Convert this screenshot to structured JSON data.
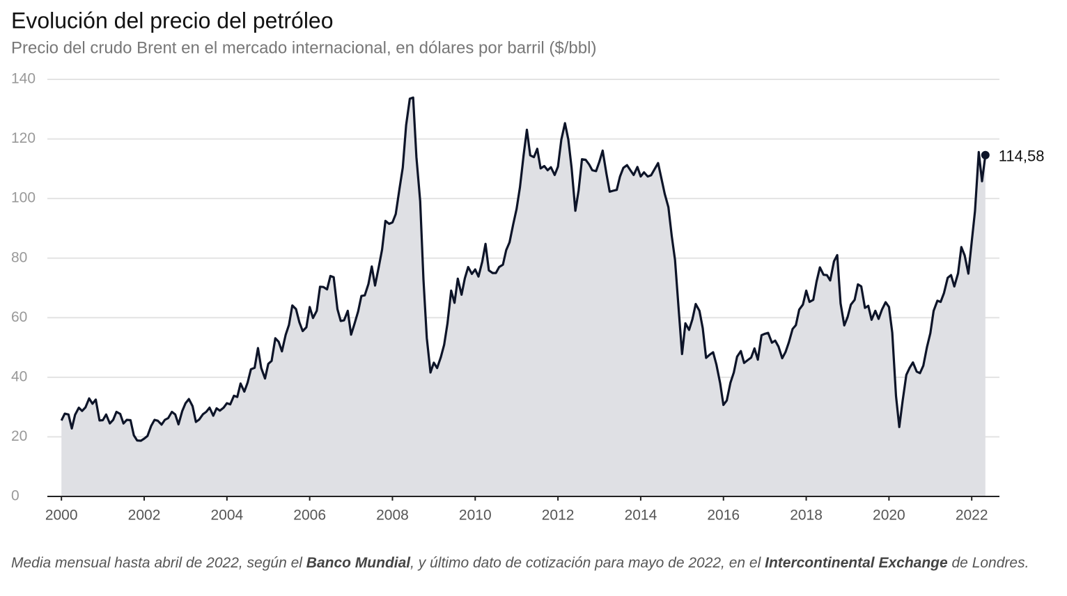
{
  "chart_data": {
    "type": "area",
    "title": "Evolución del precio del petróleo",
    "subtitle": "Precio del crudo Brent en el mercado internacional, en dólares por barril ($/bbl)",
    "note": [
      "Media mensual hasta abril de 2022, según el ",
      "Banco Mundial",
      ", y último dato de cotización para mayo de 2022, en el ",
      "Intercontinental Exchange",
      " de Londres."
    ],
    "last_label": "114,58",
    "xlim": [
      1999.66,
      2022.67
    ],
    "xticks": [
      2000,
      2002,
      2004,
      2006,
      2008,
      2010,
      2012,
      2014,
      2016,
      2018,
      2020,
      2022
    ],
    "ylim": [
      0,
      140
    ],
    "yticks": [
      0,
      20,
      40,
      60,
      80,
      100,
      120,
      140
    ],
    "grid": true,
    "series": [
      {
        "color": "#0d1428",
        "fill": "#dfe0e4",
        "x": [
          2000,
          2000.08,
          2000.17,
          2000.25,
          2000.33,
          2000.42,
          2000.5,
          2000.58,
          2000.67,
          2000.75,
          2000.83,
          2000.92,
          2001,
          2001.08,
          2001.17,
          2001.25,
          2001.33,
          2001.42,
          2001.5,
          2001.58,
          2001.67,
          2001.75,
          2001.83,
          2001.92,
          2002,
          2002.08,
          2002.17,
          2002.25,
          2002.33,
          2002.42,
          2002.5,
          2002.58,
          2002.67,
          2002.75,
          2002.83,
          2002.92,
          2003,
          2003.08,
          2003.17,
          2003.25,
          2003.33,
          2003.42,
          2003.5,
          2003.58,
          2003.67,
          2003.75,
          2003.83,
          2003.92,
          2004,
          2004.08,
          2004.17,
          2004.25,
          2004.33,
          2004.42,
          2004.5,
          2004.58,
          2004.67,
          2004.75,
          2004.83,
          2004.92,
          2005,
          2005.08,
          2005.17,
          2005.25,
          2005.33,
          2005.42,
          2005.5,
          2005.58,
          2005.67,
          2005.75,
          2005.83,
          2005.92,
          2006,
          2006.08,
          2006.17,
          2006.25,
          2006.33,
          2006.42,
          2006.5,
          2006.58,
          2006.67,
          2006.75,
          2006.83,
          2006.92,
          2007,
          2007.08,
          2007.17,
          2007.25,
          2007.33,
          2007.42,
          2007.5,
          2007.58,
          2007.67,
          2007.75,
          2007.83,
          2007.92,
          2008,
          2008.08,
          2008.17,
          2008.25,
          2008.33,
          2008.42,
          2008.5,
          2008.58,
          2008.67,
          2008.75,
          2008.83,
          2008.92,
          2009,
          2009.08,
          2009.17,
          2009.25,
          2009.33,
          2009.42,
          2009.5,
          2009.58,
          2009.67,
          2009.75,
          2009.83,
          2009.92,
          2010,
          2010.08,
          2010.17,
          2010.25,
          2010.33,
          2010.42,
          2010.5,
          2010.58,
          2010.67,
          2010.75,
          2010.83,
          2010.92,
          2011,
          2011.08,
          2011.17,
          2011.25,
          2011.33,
          2011.42,
          2011.5,
          2011.58,
          2011.67,
          2011.75,
          2011.83,
          2011.92,
          2012,
          2012.08,
          2012.17,
          2012.25,
          2012.33,
          2012.42,
          2012.5,
          2012.58,
          2012.67,
          2012.75,
          2012.83,
          2012.92,
          2013,
          2013.08,
          2013.17,
          2013.25,
          2013.33,
          2013.42,
          2013.5,
          2013.58,
          2013.67,
          2013.75,
          2013.83,
          2013.92,
          2014,
          2014.08,
          2014.17,
          2014.25,
          2014.33,
          2014.42,
          2014.5,
          2014.58,
          2014.67,
          2014.75,
          2014.83,
          2014.92,
          2015,
          2015.08,
          2015.17,
          2015.25,
          2015.33,
          2015.42,
          2015.5,
          2015.58,
          2015.67,
          2015.75,
          2015.83,
          2015.92,
          2016,
          2016.08,
          2016.17,
          2016.25,
          2016.33,
          2016.42,
          2016.5,
          2016.58,
          2016.67,
          2016.75,
          2016.83,
          2016.92,
          2017,
          2017.08,
          2017.17,
          2017.25,
          2017.33,
          2017.42,
          2017.5,
          2017.58,
          2017.67,
          2017.75,
          2017.83,
          2017.92,
          2018,
          2018.08,
          2018.17,
          2018.25,
          2018.33,
          2018.42,
          2018.5,
          2018.58,
          2018.67,
          2018.75,
          2018.83,
          2018.92,
          2019,
          2019.08,
          2019.17,
          2019.25,
          2019.33,
          2019.42,
          2019.5,
          2019.58,
          2019.67,
          2019.75,
          2019.83,
          2019.92,
          2020,
          2020.08,
          2020.17,
          2020.25,
          2020.33,
          2020.42,
          2020.5,
          2020.58,
          2020.67,
          2020.75,
          2020.83,
          2020.92,
          2021,
          2021.08,
          2021.17,
          2021.25,
          2021.33,
          2021.42,
          2021.5,
          2021.58,
          2021.67,
          2021.75,
          2021.83,
          2021.92,
          2022,
          2022.08,
          2022.17,
          2022.25,
          2022.33
        ],
        "values": [
          25.5,
          27.8,
          27.5,
          22.8,
          27.4,
          29.8,
          28.7,
          29.9,
          32.9,
          31.1,
          32.5,
          25.5,
          25.6,
          27.5,
          24.5,
          25.7,
          28.4,
          27.7,
          24.5,
          25.7,
          25.6,
          20.5,
          18.8,
          18.7,
          19.4,
          20.3,
          23.7,
          25.7,
          25.4,
          24.1,
          25.7,
          26.3,
          28.4,
          27.5,
          24.2,
          28.7,
          31.3,
          32.7,
          30.3,
          25.0,
          25.8,
          27.6,
          28.4,
          29.8,
          27.1,
          29.6,
          28.8,
          29.8,
          31.3,
          30.9,
          33.8,
          33.4,
          37.9,
          35.2,
          38.2,
          42.7,
          43.2,
          49.8,
          43.1,
          39.6,
          44.5,
          45.5,
          53.1,
          51.9,
          48.7,
          54.3,
          57.6,
          64.1,
          62.9,
          58.5,
          55.5,
          56.8,
          63.6,
          59.9,
          62.3,
          70.4,
          70.3,
          69.5,
          74.0,
          73.6,
          62.9,
          58.9,
          59.1,
          62.3,
          54.3,
          57.8,
          62.1,
          67.3,
          67.5,
          71.3,
          77.2,
          70.8,
          77.1,
          82.9,
          92.5,
          91.5,
          92.0,
          94.8,
          103.3,
          110.4,
          124.6,
          133.5,
          133.9,
          113.9,
          99.1,
          72.8,
          53.2,
          41.6,
          44.9,
          43.1,
          46.8,
          50.9,
          58.1,
          69.1,
          65.0,
          73.1,
          67.7,
          73.2,
          77.0,
          74.7,
          76.2,
          73.8,
          78.8,
          84.8,
          75.9,
          75.0,
          75.0,
          77.0,
          77.8,
          82.7,
          85.3,
          91.4,
          96.5,
          103.7,
          114.6,
          123.1,
          114.5,
          113.9,
          116.7,
          110.1,
          110.9,
          109.5,
          110.5,
          107.9,
          110.7,
          119.7,
          125.3,
          119.8,
          110.3,
          95.9,
          102.8,
          113.2,
          113.0,
          111.5,
          109.5,
          109.2,
          112.3,
          116.1,
          108.5,
          102.3,
          102.6,
          102.9,
          107.4,
          110.3,
          111.2,
          109.5,
          107.9,
          110.6,
          107.4,
          108.8,
          107.4,
          107.8,
          109.7,
          111.9,
          106.8,
          101.6,
          97.1,
          87.4,
          79.4,
          62.3,
          47.8,
          58.1,
          55.9,
          59.5,
          64.6,
          62.3,
          56.5,
          46.5,
          47.6,
          48.4,
          44.3,
          38.0,
          30.7,
          32.2,
          38.2,
          41.6,
          46.9,
          48.8,
          44.8,
          45.7,
          46.6,
          49.7,
          45.9,
          54.1,
          54.6,
          54.9,
          51.6,
          52.3,
          50.3,
          46.4,
          48.5,
          51.7,
          56.2,
          57.5,
          62.7,
          64.4,
          69.1,
          65.3,
          66.0,
          72.1,
          76.9,
          74.4,
          74.3,
          72.5,
          78.9,
          81.0,
          64.8,
          57.4,
          60.2,
          64.4,
          66.0,
          71.2,
          70.5,
          63.3,
          64.0,
          59.3,
          62.3,
          59.6,
          62.7,
          65.2,
          63.6,
          55.0,
          33.7,
          23.3,
          32.1,
          40.8,
          43.2,
          45.0,
          41.9,
          41.4,
          43.9,
          50.2,
          54.8,
          62.3,
          65.7,
          65.3,
          68.3,
          73.4,
          74.3,
          70.5,
          74.9,
          83.7,
          80.9,
          74.8,
          85.5,
          95.8,
          115.6,
          105.8,
          114.58
        ]
      }
    ]
  }
}
